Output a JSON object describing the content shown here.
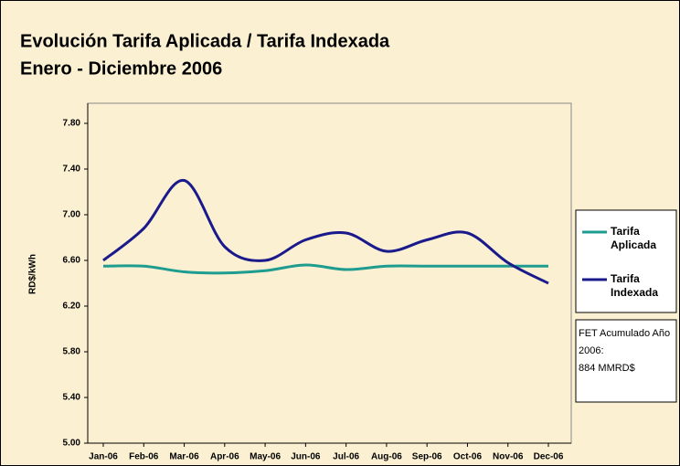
{
  "chart_data": {
    "type": "line",
    "title": "Evolución Tarifa Aplicada / Tarifa Indexada",
    "subtitle": "Enero - Diciembre 2006",
    "y_label": "RD$/kWh",
    "categories": [
      "Jan-06",
      "Feb-06",
      "Mar-06",
      "Apr-06",
      "May-06",
      "Jun-06",
      "Jul-06",
      "Aug-06",
      "Sep-06",
      "Oct-06",
      "Nov-06",
      "Dec-06"
    ],
    "series": [
      {
        "name": "Tarifa Aplicada",
        "color": "#1f9c90",
        "values": [
          6.55,
          6.55,
          6.5,
          6.49,
          6.51,
          6.56,
          6.52,
          6.55,
          6.55,
          6.55,
          6.55,
          6.55
        ]
      },
      {
        "name": "Tarifa Indexada",
        "color": "#1a1a8c",
        "values": [
          6.6,
          6.88,
          7.3,
          6.72,
          6.6,
          6.78,
          6.84,
          6.68,
          6.78,
          6.84,
          6.58,
          6.4
        ]
      }
    ],
    "ylim": [
      5.0,
      7.8
    ],
    "yticks": [
      {
        "value": 5.0,
        "label": "5.00"
      },
      {
        "value": 5.4,
        "label": "5.40"
      },
      {
        "value": 5.8,
        "label": "5.80"
      },
      {
        "value": 6.2,
        "label": "6.20"
      },
      {
        "value": 6.6,
        "label": "6.60"
      },
      {
        "value": 7.0,
        "label": "7.00"
      },
      {
        "value": 7.4,
        "label": "7.40"
      },
      {
        "value": 7.8,
        "label": "7.80"
      }
    ],
    "annotation": [
      "FET Acumulado Año",
      "2006:",
      "884 MMRD$"
    ],
    "legend": "right"
  }
}
